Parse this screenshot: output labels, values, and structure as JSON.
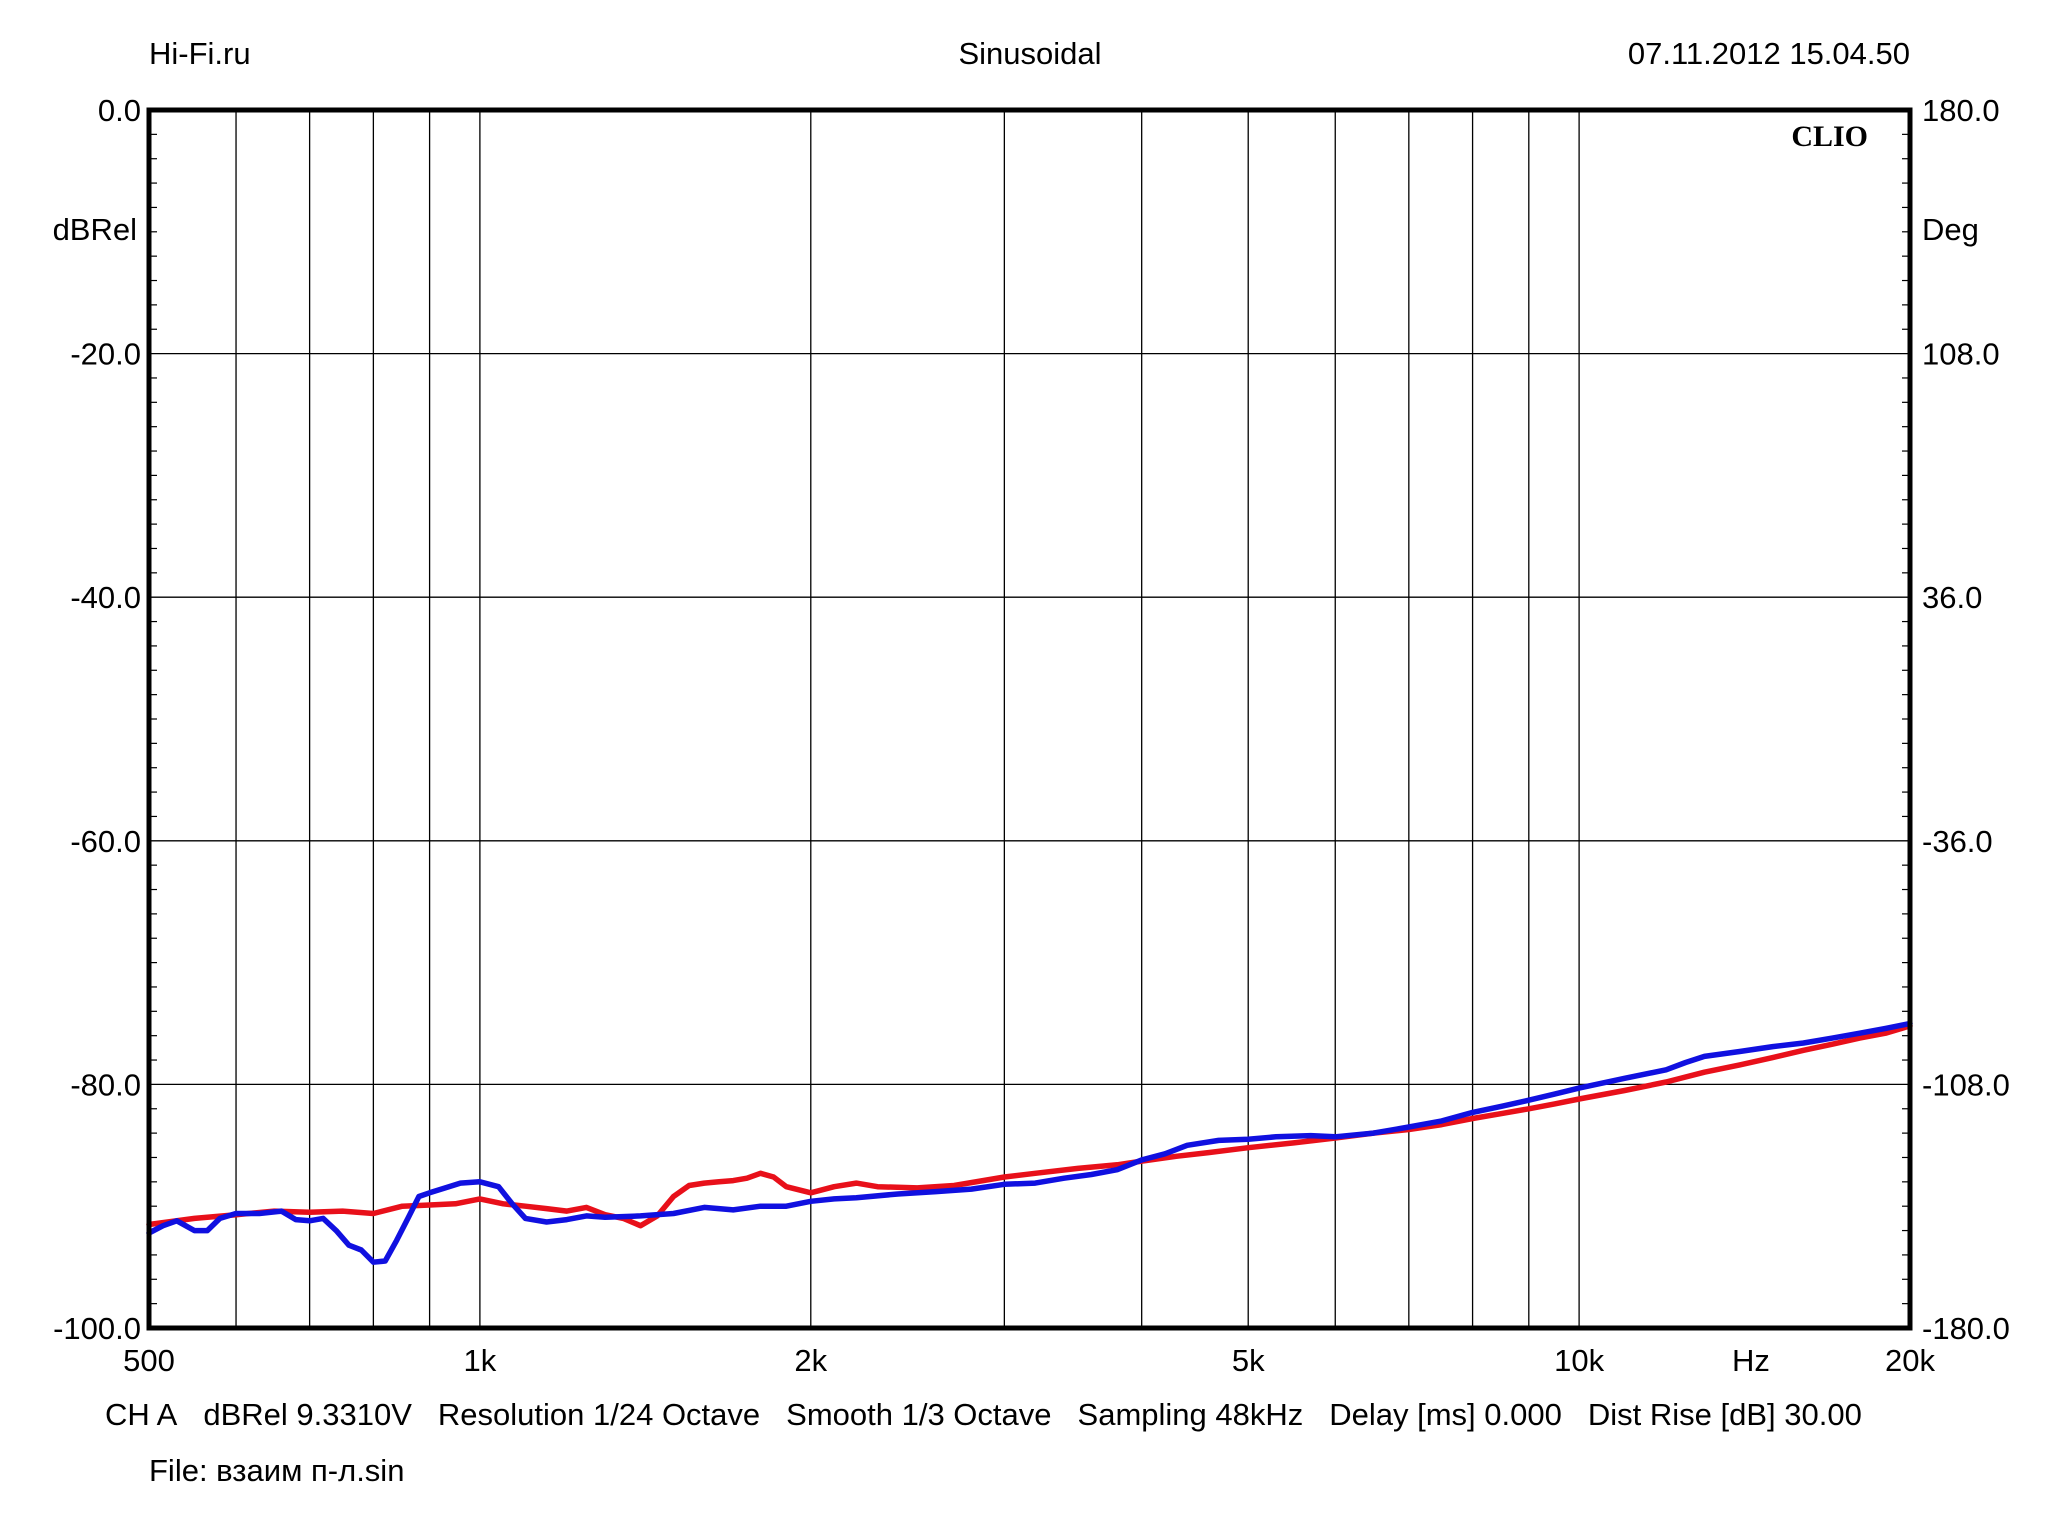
{
  "header": {
    "left": "Hi-Fi.ru",
    "center": "Sinusoidal",
    "right": "07.11.2012 15.04.50"
  },
  "brand": "CLIO",
  "footer": {
    "channel": "CH A",
    "level": "dBRel 9.3310V",
    "resolution": "Resolution 1/24 Octave",
    "smooth": "Smooth 1/3 Octave",
    "sampling": "Sampling 48kHz",
    "delay": "Delay [ms] 0.000",
    "dist_rise": "Dist Rise [dB] 30.00",
    "file": "File: взаим п-л.sin"
  },
  "colors": {
    "red_series": "#e8101a",
    "blue_series": "#1010e0",
    "grid": "#000000"
  },
  "chart_data": {
    "type": "line",
    "xscale": "log",
    "xlim": [
      500,
      20000
    ],
    "ylim": [
      -100,
      0
    ],
    "y2lim": [
      -180,
      180
    ],
    "ylabel": "dBRel",
    "y2label": "Deg",
    "xunit": "Hz",
    "grid": true,
    "yticks": [
      {
        "value": 0,
        "label": "0.0"
      },
      {
        "value": -20,
        "label": "-20.0"
      },
      {
        "value": -40,
        "label": "-40.0"
      },
      {
        "value": -60,
        "label": "-60.0"
      },
      {
        "value": -80,
        "label": "-80.0"
      },
      {
        "value": -100,
        "label": "-100.0"
      }
    ],
    "y2ticks": [
      {
        "value": 180,
        "label": "180.0"
      },
      {
        "value": 108,
        "label": "108.0"
      },
      {
        "value": 36,
        "label": "36.0"
      },
      {
        "value": -36,
        "label": "-36.0"
      },
      {
        "value": -108,
        "label": "-108.0"
      },
      {
        "value": -180,
        "label": "-180.0"
      }
    ],
    "xticks": [
      {
        "value": 500,
        "label": "500"
      },
      {
        "value": 1000,
        "label": "1k"
      },
      {
        "value": 2000,
        "label": "2k"
      },
      {
        "value": 5000,
        "label": "5k"
      },
      {
        "value": 10000,
        "label": "10k"
      },
      {
        "value": 20000,
        "label": "20k"
      }
    ],
    "xgrid": [
      600,
      700,
      800,
      900,
      1000,
      2000,
      3000,
      4000,
      5000,
      6000,
      7000,
      8000,
      9000,
      10000
    ],
    "series": [
      {
        "color": "#e8101a",
        "points": [
          [
            500,
            -91.5
          ],
          [
            550,
            -91.0
          ],
          [
            600,
            -90.7
          ],
          [
            650,
            -90.4
          ],
          [
            700,
            -90.5
          ],
          [
            750,
            -90.4
          ],
          [
            800,
            -90.6
          ],
          [
            850,
            -90.0
          ],
          [
            900,
            -89.9
          ],
          [
            950,
            -89.8
          ],
          [
            1000,
            -89.4
          ],
          [
            1050,
            -89.8
          ],
          [
            1100,
            -90.0
          ],
          [
            1150,
            -90.2
          ],
          [
            1200,
            -90.4
          ],
          [
            1250,
            -90.1
          ],
          [
            1300,
            -90.7
          ],
          [
            1350,
            -91.0
          ],
          [
            1400,
            -91.6
          ],
          [
            1450,
            -90.8
          ],
          [
            1500,
            -89.2
          ],
          [
            1550,
            -88.3
          ],
          [
            1600,
            -88.1
          ],
          [
            1650,
            -88.0
          ],
          [
            1700,
            -87.9
          ],
          [
            1750,
            -87.7
          ],
          [
            1800,
            -87.3
          ],
          [
            1850,
            -87.6
          ],
          [
            1900,
            -88.4
          ],
          [
            2000,
            -88.9
          ],
          [
            2100,
            -88.4
          ],
          [
            2200,
            -88.1
          ],
          [
            2300,
            -88.4
          ],
          [
            2500,
            -88.5
          ],
          [
            2700,
            -88.3
          ],
          [
            3000,
            -87.6
          ],
          [
            3200,
            -87.3
          ],
          [
            3500,
            -86.9
          ],
          [
            3800,
            -86.6
          ],
          [
            4000,
            -86.3
          ],
          [
            4300,
            -85.9
          ],
          [
            4600,
            -85.6
          ],
          [
            5000,
            -85.2
          ],
          [
            5500,
            -84.8
          ],
          [
            6000,
            -84.4
          ],
          [
            6500,
            -84.0
          ],
          [
            7000,
            -83.7
          ],
          [
            7500,
            -83.3
          ],
          [
            8000,
            -82.8
          ],
          [
            8500,
            -82.4
          ],
          [
            9000,
            -82.0
          ],
          [
            9500,
            -81.6
          ],
          [
            10000,
            -81.2
          ],
          [
            11000,
            -80.5
          ],
          [
            12000,
            -79.8
          ],
          [
            13000,
            -79.0
          ],
          [
            14000,
            -78.4
          ],
          [
            15000,
            -77.8
          ],
          [
            16000,
            -77.2
          ],
          [
            17000,
            -76.7
          ],
          [
            18000,
            -76.2
          ],
          [
            19000,
            -75.8
          ],
          [
            20000,
            -75.2
          ]
        ]
      },
      {
        "color": "#1010e0",
        "points": [
          [
            500,
            -92.2
          ],
          [
            515,
            -91.6
          ],
          [
            530,
            -91.2
          ],
          [
            550,
            -92.0
          ],
          [
            565,
            -92.0
          ],
          [
            580,
            -91.0
          ],
          [
            600,
            -90.6
          ],
          [
            630,
            -90.6
          ],
          [
            660,
            -90.4
          ],
          [
            680,
            -91.1
          ],
          [
            700,
            -91.2
          ],
          [
            720,
            -91.0
          ],
          [
            740,
            -92.0
          ],
          [
            760,
            -93.2
          ],
          [
            780,
            -93.6
          ],
          [
            800,
            -94.6
          ],
          [
            820,
            -94.5
          ],
          [
            840,
            -92.8
          ],
          [
            860,
            -91.0
          ],
          [
            880,
            -89.2
          ],
          [
            900,
            -88.9
          ],
          [
            930,
            -88.5
          ],
          [
            960,
            -88.1
          ],
          [
            1000,
            -88.0
          ],
          [
            1040,
            -88.4
          ],
          [
            1070,
            -89.8
          ],
          [
            1100,
            -91.0
          ],
          [
            1150,
            -91.3
          ],
          [
            1200,
            -91.1
          ],
          [
            1250,
            -90.8
          ],
          [
            1300,
            -90.9
          ],
          [
            1400,
            -90.8
          ],
          [
            1500,
            -90.6
          ],
          [
            1600,
            -90.1
          ],
          [
            1700,
            -90.3
          ],
          [
            1800,
            -90.0
          ],
          [
            1900,
            -90.0
          ],
          [
            2000,
            -89.6
          ],
          [
            2100,
            -89.4
          ],
          [
            2200,
            -89.3
          ],
          [
            2400,
            -89.0
          ],
          [
            2600,
            -88.8
          ],
          [
            2800,
            -88.6
          ],
          [
            3000,
            -88.2
          ],
          [
            3200,
            -88.1
          ],
          [
            3400,
            -87.7
          ],
          [
            3600,
            -87.4
          ],
          [
            3800,
            -87.0
          ],
          [
            4000,
            -86.2
          ],
          [
            4200,
            -85.7
          ],
          [
            4400,
            -85.0
          ],
          [
            4700,
            -84.6
          ],
          [
            5000,
            -84.5
          ],
          [
            5300,
            -84.3
          ],
          [
            5700,
            -84.2
          ],
          [
            6000,
            -84.3
          ],
          [
            6500,
            -84.0
          ],
          [
            7000,
            -83.5
          ],
          [
            7500,
            -83.0
          ],
          [
            8000,
            -82.3
          ],
          [
            8500,
            -81.8
          ],
          [
            9000,
            -81.3
          ],
          [
            9500,
            -80.8
          ],
          [
            10000,
            -80.3
          ],
          [
            11000,
            -79.5
          ],
          [
            12000,
            -78.8
          ],
          [
            12500,
            -78.2
          ],
          [
            13000,
            -77.7
          ],
          [
            14000,
            -77.3
          ],
          [
            15000,
            -76.9
          ],
          [
            16000,
            -76.6
          ],
          [
            17000,
            -76.2
          ],
          [
            18000,
            -75.8
          ],
          [
            19000,
            -75.4
          ],
          [
            20000,
            -75.0
          ]
        ]
      }
    ]
  }
}
